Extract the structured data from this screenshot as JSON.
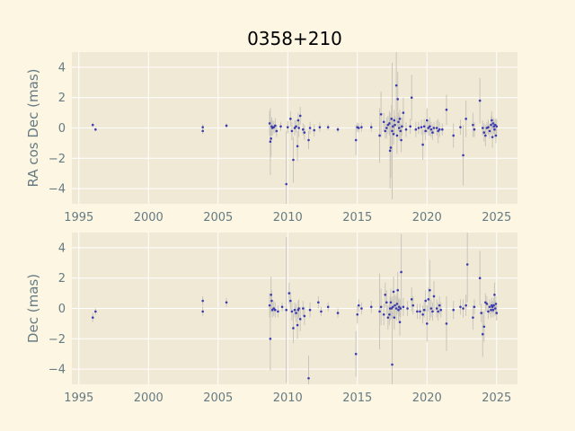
{
  "colors": {
    "figure_bg": "#fdf6e3",
    "axes_bg": "#f0e9d5",
    "grid": "#ffffff",
    "marker": "#3b3bb0",
    "errorbar": "#c9c5bb",
    "text": "#657b83"
  },
  "chart_data": {
    "type": "scatter",
    "title": "0358+210",
    "grid": true,
    "panels": [
      {
        "ylabel": "RA cos Dec (mas)",
        "xlim": [
          1994.5,
          2026.5
        ],
        "ylim": [
          -5,
          5
        ],
        "xticks": [
          1995,
          2000,
          2005,
          2010,
          2015,
          2020,
          2025
        ],
        "yticks": [
          -4,
          -2,
          0,
          2,
          4
        ],
        "points": [
          [
            1996.0,
            0.2,
            0.15
          ],
          [
            1996.2,
            -0.1,
            0.1
          ],
          [
            2003.9,
            0.05,
            0.2
          ],
          [
            2003.9,
            -0.2,
            0.2
          ],
          [
            2005.6,
            0.15,
            0.15
          ],
          [
            2008.7,
            0.3,
            0.8
          ],
          [
            2008.75,
            -0.9,
            2.2
          ],
          [
            2008.8,
            -0.7,
            1.2
          ],
          [
            2008.85,
            0.1,
            0.6
          ],
          [
            2008.9,
            0.0,
            0.5
          ],
          [
            2009.0,
            0.05,
            0.4
          ],
          [
            2009.1,
            0.15,
            0.5
          ],
          [
            2009.2,
            -0.2,
            0.4
          ],
          [
            2009.5,
            0.1,
            0.3
          ],
          [
            2009.9,
            -3.7,
            3.5
          ],
          [
            2010.0,
            0.05,
            0.4
          ],
          [
            2010.2,
            0.6,
            0.5
          ],
          [
            2010.3,
            -0.2,
            0.6
          ],
          [
            2010.4,
            -2.1,
            1.5
          ],
          [
            2010.5,
            0.0,
            0.5
          ],
          [
            2010.6,
            0.1,
            0.4
          ],
          [
            2010.7,
            -1.2,
            1.0
          ],
          [
            2010.75,
            0.5,
            0.5
          ],
          [
            2010.8,
            0.0,
            0.6
          ],
          [
            2010.9,
            0.8,
            0.6
          ],
          [
            2011.1,
            -0.1,
            0.4
          ],
          [
            2011.2,
            -0.3,
            0.5
          ],
          [
            2011.5,
            -0.8,
            0.6
          ],
          [
            2011.6,
            0.0,
            0.4
          ],
          [
            2011.9,
            -0.15,
            0.4
          ],
          [
            2012.3,
            0.05,
            0.3
          ],
          [
            2012.9,
            0.05,
            0.2
          ],
          [
            2013.6,
            -0.1,
            0.2
          ],
          [
            2014.9,
            -0.8,
            1.0
          ],
          [
            2015.0,
            0.05,
            0.3
          ],
          [
            2015.1,
            0.0,
            0.3
          ],
          [
            2015.3,
            0.05,
            0.3
          ],
          [
            2016.0,
            0.05,
            0.3
          ],
          [
            2016.6,
            -0.5,
            1.8
          ],
          [
            2016.7,
            0.9,
            1.5
          ],
          [
            2016.9,
            0.4,
            0.6
          ],
          [
            2017.0,
            -0.2,
            0.5
          ],
          [
            2017.1,
            0.0,
            0.7
          ],
          [
            2017.2,
            0.2,
            0.6
          ],
          [
            2017.3,
            0.3,
            0.8
          ],
          [
            2017.35,
            -1.5,
            2.5
          ],
          [
            2017.4,
            -1.3,
            2.0
          ],
          [
            2017.45,
            0.6,
            0.9
          ],
          [
            2017.5,
            -0.2,
            4.5
          ],
          [
            2017.55,
            0.1,
            0.6
          ],
          [
            2017.6,
            -0.4,
            0.7
          ],
          [
            2017.65,
            0.5,
            0.7
          ],
          [
            2017.7,
            0.2,
            0.6
          ],
          [
            2017.8,
            2.8,
            2.5
          ],
          [
            2017.85,
            -0.5,
            1.2
          ],
          [
            2017.9,
            1.9,
            1.8
          ],
          [
            2017.95,
            0.4,
            0.6
          ],
          [
            2018.0,
            0.0,
            0.8
          ],
          [
            2018.05,
            0.6,
            0.6
          ],
          [
            2018.1,
            -0.2,
            0.5
          ],
          [
            2018.15,
            -0.8,
            0.8
          ],
          [
            2018.2,
            0.1,
            0.6
          ],
          [
            2018.3,
            1.0,
            1.0
          ],
          [
            2018.5,
            -0.1,
            0.5
          ],
          [
            2018.8,
            0.1,
            0.5
          ],
          [
            2018.9,
            2.0,
            1.5
          ],
          [
            2019.2,
            -0.1,
            0.5
          ],
          [
            2019.4,
            0.0,
            0.4
          ],
          [
            2019.6,
            0.05,
            0.5
          ],
          [
            2019.7,
            -1.1,
            1.0
          ],
          [
            2019.8,
            0.1,
            0.5
          ],
          [
            2019.9,
            -0.2,
            0.6
          ],
          [
            2020.0,
            0.5,
            0.8
          ],
          [
            2020.1,
            0.0,
            0.5
          ],
          [
            2020.2,
            0.1,
            0.6
          ],
          [
            2020.3,
            -0.1,
            0.5
          ],
          [
            2020.4,
            -0.3,
            0.5
          ],
          [
            2020.5,
            0.0,
            0.4
          ],
          [
            2020.7,
            0.0,
            0.5
          ],
          [
            2020.8,
            -0.2,
            0.8
          ],
          [
            2020.9,
            -0.1,
            0.5
          ],
          [
            2021.1,
            -0.1,
            0.4
          ],
          [
            2021.4,
            1.2,
            1.0
          ],
          [
            2021.9,
            -0.5,
            0.8
          ],
          [
            2022.4,
            0.05,
            0.5
          ],
          [
            2022.6,
            -1.8,
            2.0
          ],
          [
            2022.8,
            0.6,
            1.2
          ],
          [
            2023.3,
            0.2,
            0.8
          ],
          [
            2023.4,
            -0.1,
            0.5
          ],
          [
            2023.8,
            1.8,
            1.5
          ],
          [
            2024.0,
            0.0,
            0.5
          ],
          [
            2024.1,
            -0.3,
            0.6
          ],
          [
            2024.2,
            -0.5,
            0.7
          ],
          [
            2024.3,
            0.0,
            0.4
          ],
          [
            2024.4,
            0.05,
            0.5
          ],
          [
            2024.5,
            -0.2,
            0.5
          ],
          [
            2024.6,
            0.2,
            0.6
          ],
          [
            2024.65,
            0.5,
            0.6
          ],
          [
            2024.7,
            -0.6,
            0.7
          ],
          [
            2024.75,
            0.3,
            0.4
          ],
          [
            2024.8,
            0.1,
            0.5
          ],
          [
            2024.85,
            -0.1,
            0.5
          ],
          [
            2024.9,
            0.2,
            0.4
          ],
          [
            2024.95,
            -0.5,
            0.5
          ],
          [
            2025.0,
            0.1,
            0.5
          ]
        ]
      },
      {
        "ylabel": "Dec (mas)",
        "xlim": [
          1994.5,
          2026.5
        ],
        "ylim": [
          -5,
          5
        ],
        "xticks": [
          1995,
          2000,
          2005,
          2010,
          2015,
          2020,
          2025
        ],
        "yticks": [
          -4,
          -2,
          0,
          2,
          4
        ],
        "points": [
          [
            1996.0,
            -0.6,
            0.3
          ],
          [
            1996.2,
            -0.2,
            0.2
          ],
          [
            2003.9,
            0.5,
            0.3
          ],
          [
            2003.9,
            -0.2,
            0.3
          ],
          [
            2005.6,
            0.4,
            0.3
          ],
          [
            2008.7,
            0.2,
            0.8
          ],
          [
            2008.75,
            -2.0,
            2.1
          ],
          [
            2008.8,
            0.9,
            1.2
          ],
          [
            2008.85,
            0.5,
            0.7
          ],
          [
            2008.9,
            -0.1,
            0.5
          ],
          [
            2009.0,
            0.0,
            0.5
          ],
          [
            2009.1,
            -0.1,
            0.5
          ],
          [
            2009.3,
            -0.2,
            0.4
          ],
          [
            2009.6,
            0.1,
            0.3
          ],
          [
            2009.9,
            -0.1,
            4.8
          ],
          [
            2010.1,
            1.0,
            0.7
          ],
          [
            2010.2,
            0.5,
            0.6
          ],
          [
            2010.3,
            -0.2,
            0.6
          ],
          [
            2010.4,
            -1.3,
            1.0
          ],
          [
            2010.5,
            -0.1,
            0.5
          ],
          [
            2010.6,
            -0.3,
            0.6
          ],
          [
            2010.7,
            -1.1,
            0.9
          ],
          [
            2010.75,
            -0.1,
            0.6
          ],
          [
            2010.8,
            0.0,
            0.6
          ],
          [
            2010.9,
            -0.7,
            0.8
          ],
          [
            2011.1,
            0.0,
            0.5
          ],
          [
            2011.2,
            -0.5,
            0.6
          ],
          [
            2011.5,
            -4.6,
            1.5
          ],
          [
            2011.6,
            -0.1,
            0.5
          ],
          [
            2012.2,
            0.4,
            0.4
          ],
          [
            2012.4,
            -0.2,
            0.3
          ],
          [
            2012.9,
            0.1,
            0.3
          ],
          [
            2013.6,
            -0.3,
            0.3
          ],
          [
            2014.9,
            -3.0,
            1.5
          ],
          [
            2015.0,
            -0.4,
            0.6
          ],
          [
            2015.1,
            0.2,
            0.4
          ],
          [
            2015.3,
            0.0,
            0.4
          ],
          [
            2016.0,
            0.1,
            0.4
          ],
          [
            2016.6,
            -0.2,
            2.5
          ],
          [
            2016.7,
            0.1,
            1.2
          ],
          [
            2016.9,
            -0.4,
            0.7
          ],
          [
            2017.0,
            0.9,
            0.8
          ],
          [
            2017.1,
            0.4,
            0.8
          ],
          [
            2017.2,
            -0.6,
            0.8
          ],
          [
            2017.3,
            -0.4,
            0.7
          ],
          [
            2017.35,
            0.0,
            0.8
          ],
          [
            2017.4,
            0.4,
            0.9
          ],
          [
            2017.45,
            0.0,
            0.7
          ],
          [
            2017.5,
            -3.7,
            3.5
          ],
          [
            2017.55,
            0.1,
            0.7
          ],
          [
            2017.6,
            1.1,
            1.0
          ],
          [
            2017.65,
            -0.6,
            0.8
          ],
          [
            2017.7,
            0.2,
            0.7
          ],
          [
            2017.8,
            0.0,
            0.8
          ],
          [
            2017.85,
            0.3,
            0.7
          ],
          [
            2017.9,
            1.2,
            1.2
          ],
          [
            2017.95,
            -0.1,
            0.7
          ],
          [
            2018.0,
            0.1,
            0.6
          ],
          [
            2018.05,
            -0.9,
            0.9
          ],
          [
            2018.1,
            0.0,
            0.6
          ],
          [
            2018.15,
            2.4,
            2.5
          ],
          [
            2018.3,
            0.1,
            0.6
          ],
          [
            2018.6,
            0.0,
            0.5
          ],
          [
            2018.9,
            0.6,
            0.8
          ],
          [
            2019.0,
            0.2,
            0.6
          ],
          [
            2019.3,
            -0.2,
            0.5
          ],
          [
            2019.5,
            -0.2,
            0.5
          ],
          [
            2019.7,
            -0.4,
            0.6
          ],
          [
            2019.8,
            -0.1,
            0.5
          ],
          [
            2019.9,
            0.5,
            0.7
          ],
          [
            2020.0,
            -1.0,
            1.2
          ],
          [
            2020.1,
            0.6,
            0.8
          ],
          [
            2020.2,
            1.2,
            2.0
          ],
          [
            2020.3,
            0.0,
            0.6
          ],
          [
            2020.4,
            -0.2,
            0.6
          ],
          [
            2020.5,
            0.8,
            1.0
          ],
          [
            2020.7,
            0.0,
            0.6
          ],
          [
            2020.8,
            -0.2,
            0.6
          ],
          [
            2020.9,
            0.2,
            0.6
          ],
          [
            2021.0,
            -0.1,
            0.5
          ],
          [
            2021.4,
            -1.0,
            1.8
          ],
          [
            2021.9,
            -0.1,
            0.6
          ],
          [
            2022.4,
            0.1,
            0.5
          ],
          [
            2022.6,
            0.0,
            0.6
          ],
          [
            2022.8,
            0.2,
            0.7
          ],
          [
            2022.9,
            2.9,
            2.5
          ],
          [
            2023.3,
            -0.6,
            0.8
          ],
          [
            2023.4,
            0.1,
            0.5
          ],
          [
            2023.8,
            2.0,
            1.8
          ],
          [
            2023.9,
            -0.3,
            0.6
          ],
          [
            2024.0,
            -1.7,
            1.5
          ],
          [
            2024.1,
            -1.2,
            1.0
          ],
          [
            2024.2,
            0.4,
            0.6
          ],
          [
            2024.3,
            0.3,
            0.5
          ],
          [
            2024.4,
            -0.2,
            0.5
          ],
          [
            2024.5,
            0.1,
            0.5
          ],
          [
            2024.6,
            -0.1,
            0.5
          ],
          [
            2024.65,
            0.2,
            0.5
          ],
          [
            2024.7,
            0.1,
            0.4
          ],
          [
            2024.75,
            -0.1,
            0.5
          ],
          [
            2024.8,
            0.2,
            0.5
          ],
          [
            2024.85,
            0.9,
            0.8
          ],
          [
            2024.9,
            0.0,
            0.5
          ],
          [
            2024.95,
            0.3,
            0.5
          ],
          [
            2025.0,
            -0.3,
            0.5
          ]
        ]
      }
    ]
  }
}
